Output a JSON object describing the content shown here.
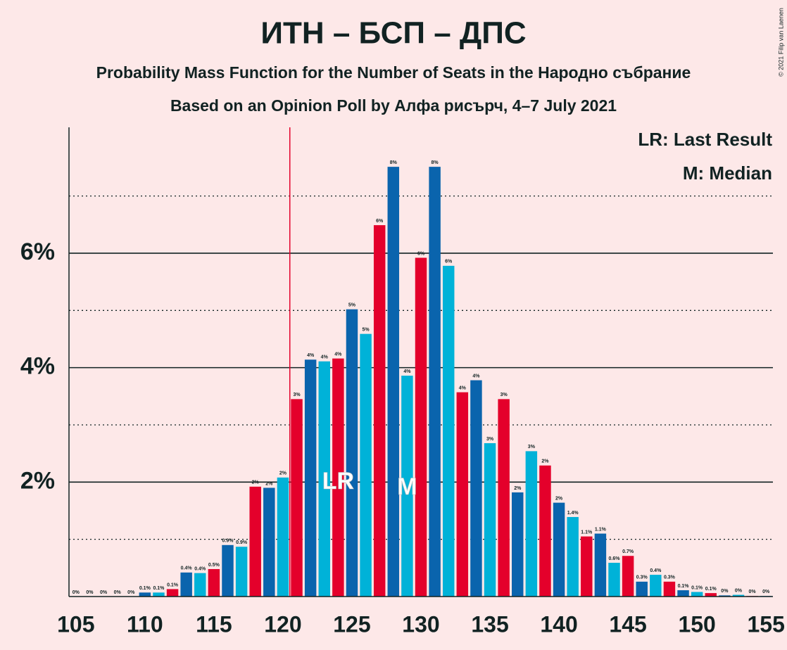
{
  "chart_data": {
    "type": "bar",
    "title": "ИТН – БСП – ДПС",
    "subtitle": "Probability Mass Function for the Number of Seats in the Народно събрание",
    "subtitle2": "Based on an Opinion Poll by Алфа рисърч, 4–7 July 2021",
    "copyright": "© 2021 Filip van Laenen",
    "legend": [
      "LR: Last Result",
      "M: Median"
    ],
    "x": [
      105,
      106,
      107,
      108,
      109,
      110,
      111,
      112,
      113,
      114,
      115,
      116,
      117,
      118,
      119,
      120,
      121,
      122,
      123,
      124,
      125,
      126,
      127,
      128,
      129,
      130,
      131,
      132,
      133,
      134,
      135,
      136,
      137,
      138,
      139,
      140,
      141,
      142,
      143,
      144,
      145,
      146,
      147,
      148,
      149,
      150,
      151,
      152,
      153,
      154,
      155
    ],
    "values": [
      0,
      0,
      0,
      0,
      0,
      0.07,
      0.07,
      0.13,
      0.42,
      0.41,
      0.48,
      0.9,
      0.87,
      1.92,
      1.9,
      2.08,
      3.45,
      4.14,
      4.11,
      4.16,
      5.02,
      4.59,
      6.49,
      7.51,
      3.86,
      5.92,
      7.51,
      5.78,
      3.57,
      3.78,
      2.68,
      3.45,
      1.82,
      2.54,
      2.29,
      1.64,
      1.39,
      1.05,
      1.1,
      0.59,
      0.71,
      0.26,
      0.38,
      0.26,
      0.11,
      0.08,
      0.06,
      0.02,
      0.03,
      0.01,
      0.01
    ],
    "value_labels": [
      "0%",
      "0%",
      "0%",
      "0%",
      "0%",
      "0.1%",
      "0.1%",
      "0.1%",
      "0.4%",
      "0.4%",
      "0.5%",
      "0.9%",
      "0.9%",
      "2%",
      "2%",
      "2%",
      "3%",
      "4%",
      "4%",
      "4%",
      "5%",
      "5%",
      "6%",
      "8%",
      "4%",
      "6%",
      "8%",
      "6%",
      "4%",
      "4%",
      "3%",
      "3%",
      "2%",
      "3%",
      "2%",
      "2%",
      "1.4%",
      "1.1%",
      "1.1%",
      "0.6%",
      "0.7%",
      "0.3%",
      "0.4%",
      "0.3%",
      "0.1%",
      "0.1%",
      "0.1%",
      "0%",
      "0%",
      "0%",
      "0%"
    ],
    "color_cycle": [
      "#00b2d8",
      "#e4002b",
      "#0a64ad"
    ],
    "xlim": [
      104.5,
      155.5
    ],
    "xticks": [
      105,
      110,
      115,
      120,
      125,
      130,
      135,
      140,
      145,
      150,
      155
    ],
    "ylim": [
      0,
      8.2
    ],
    "yticks": [
      {
        "value": 2,
        "label": "2%"
      },
      {
        "value": 4,
        "label": "4%"
      },
      {
        "value": 6,
        "label": "6%"
      }
    ],
    "minor_yticks": [
      1,
      3,
      5,
      7
    ],
    "majority_line": 120.5,
    "annotations": [
      {
        "label": "LR",
        "x": 124
      },
      {
        "label": "M",
        "x": 129
      }
    ]
  }
}
